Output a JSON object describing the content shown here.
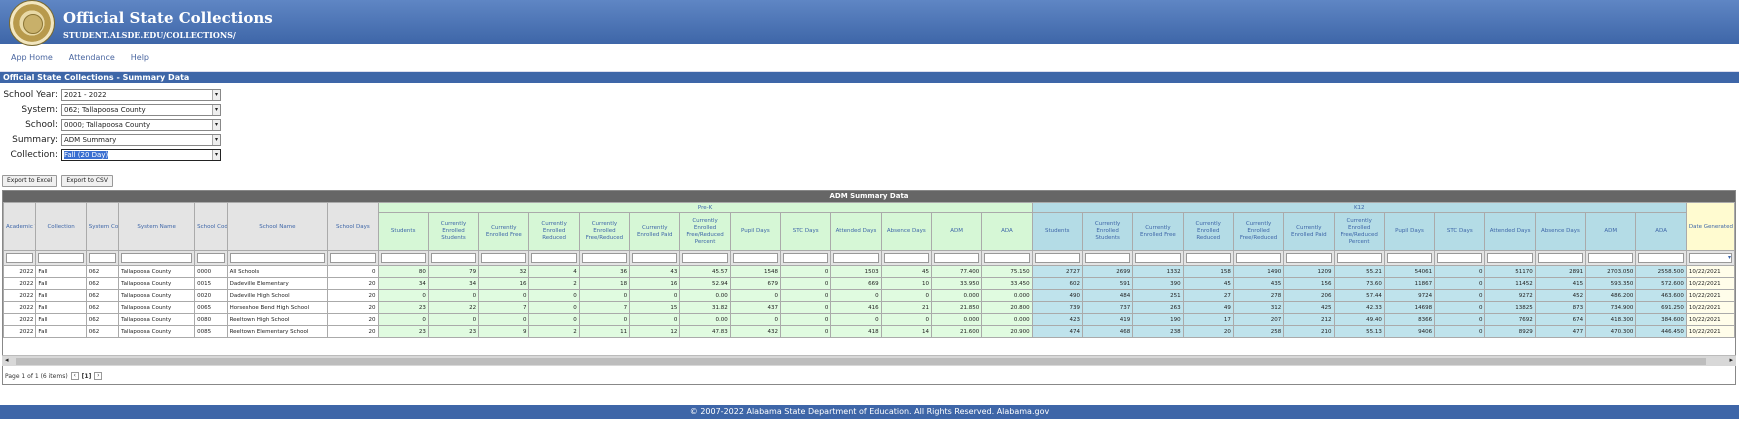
{
  "header": {
    "title": "Official State Collections",
    "url": "STUDENT.ALSDE.EDU/COLLECTIONS/"
  },
  "nav": {
    "items": [
      "App Home",
      "Attendance",
      "Help"
    ]
  },
  "section_title": "Official State Collections - Summary Data",
  "form": [
    {
      "label": "School Year:",
      "value": "2021 - 2022"
    },
    {
      "label": "System:",
      "value": "062; Tallapoosa County"
    },
    {
      "label": "School:",
      "value": "0000; Tallapoosa County"
    },
    {
      "label": "Summary:",
      "value": "ADM Summary"
    },
    {
      "label": "Collection:",
      "value": "Fall (20 Day)"
    }
  ],
  "buttons": {
    "export_excel": "Export to Excel",
    "export_csv": "Export to CSV"
  },
  "grid": {
    "caption": "ADM Summary Data",
    "group_prek": "Pre-K",
    "group_k12": "K12",
    "fixed_columns": [
      "Academic Year",
      "Collection",
      "System Code",
      "System Name",
      "School Code",
      "School Name",
      "School Days"
    ],
    "measure_columns": [
      "Students",
      "Currently Enrolled Students",
      "Currently Enrolled Free",
      "Currently Enrolled Reduced",
      "Currently Enrolled Free/Reduced",
      "Currently Enrolled Paid",
      "Currently Enrolled Free/Reduced Percent",
      "Pupil Days",
      "STC Days",
      "Attended Days",
      "Absence Days",
      "ADM",
      "ADA"
    ],
    "date_column": "Date Generated",
    "rows": [
      {
        "fixed": [
          "2022",
          "Fall",
          "062",
          "Tallapoosa County",
          "0000",
          "All Schools",
          "0"
        ],
        "prek": [
          "80",
          "79",
          "32",
          "4",
          "36",
          "43",
          "45.57",
          "1548",
          "0",
          "1503",
          "45",
          "77.400",
          "75.150"
        ],
        "k12": [
          "2727",
          "2699",
          "1332",
          "158",
          "1490",
          "1209",
          "55.21",
          "54061",
          "0",
          "51170",
          "2891",
          "2703.050",
          "2558.500"
        ],
        "date": "10/22/2021"
      },
      {
        "fixed": [
          "2022",
          "Fall",
          "062",
          "Tallapoosa County",
          "0015",
          "Dadeville Elementary",
          "20"
        ],
        "prek": [
          "34",
          "34",
          "16",
          "2",
          "18",
          "16",
          "52.94",
          "679",
          "0",
          "669",
          "10",
          "33.950",
          "33.450"
        ],
        "k12": [
          "602",
          "591",
          "390",
          "45",
          "435",
          "156",
          "73.60",
          "11867",
          "0",
          "11452",
          "415",
          "593.350",
          "572.600"
        ],
        "date": "10/22/2021"
      },
      {
        "fixed": [
          "2022",
          "Fall",
          "062",
          "Tallapoosa County",
          "0020",
          "Dadeville High School",
          "20"
        ],
        "prek": [
          "0",
          "0",
          "0",
          "0",
          "0",
          "0",
          "0.00",
          "0",
          "0",
          "0",
          "0",
          "0.000",
          "0.000"
        ],
        "k12": [
          "490",
          "484",
          "251",
          "27",
          "278",
          "206",
          "57.44",
          "9724",
          "0",
          "9272",
          "452",
          "486.200",
          "463.600"
        ],
        "date": "10/22/2021"
      },
      {
        "fixed": [
          "2022",
          "Fall",
          "062",
          "Tallapoosa County",
          "0065",
          "Horseshoe Bend High School",
          "20"
        ],
        "prek": [
          "23",
          "22",
          "7",
          "0",
          "7",
          "15",
          "31.82",
          "437",
          "0",
          "416",
          "21",
          "21.850",
          "20.800"
        ],
        "k12": [
          "739",
          "737",
          "263",
          "49",
          "312",
          "425",
          "42.33",
          "14698",
          "0",
          "13825",
          "873",
          "734.900",
          "691.250"
        ],
        "date": "10/22/2021"
      },
      {
        "fixed": [
          "2022",
          "Fall",
          "062",
          "Tallapoosa County",
          "0080",
          "Reeltown High School",
          "20"
        ],
        "prek": [
          "0",
          "0",
          "0",
          "0",
          "0",
          "0",
          "0.00",
          "0",
          "0",
          "0",
          "0",
          "0.000",
          "0.000"
        ],
        "k12": [
          "423",
          "419",
          "190",
          "17",
          "207",
          "212",
          "49.40",
          "8366",
          "0",
          "7692",
          "674",
          "418.300",
          "384.600"
        ],
        "date": "10/22/2021"
      },
      {
        "fixed": [
          "2022",
          "Fall",
          "062",
          "Tallapoosa County",
          "0085",
          "Reeltown Elementary School",
          "20"
        ],
        "prek": [
          "23",
          "23",
          "9",
          "2",
          "11",
          "12",
          "47.83",
          "432",
          "0",
          "418",
          "14",
          "21.600",
          "20.900"
        ],
        "k12": [
          "474",
          "468",
          "238",
          "20",
          "258",
          "210",
          "55.13",
          "9406",
          "0",
          "8929",
          "477",
          "470.300",
          "446.450"
        ],
        "date": "10/22/2021"
      }
    ]
  },
  "pager": {
    "text": "Page 1 of 1 (6 items)",
    "current": "[1]"
  },
  "footer": "© 2007-2022 Alabama State Department of Education.   All Rights Reserved.   Alabama.gov"
}
